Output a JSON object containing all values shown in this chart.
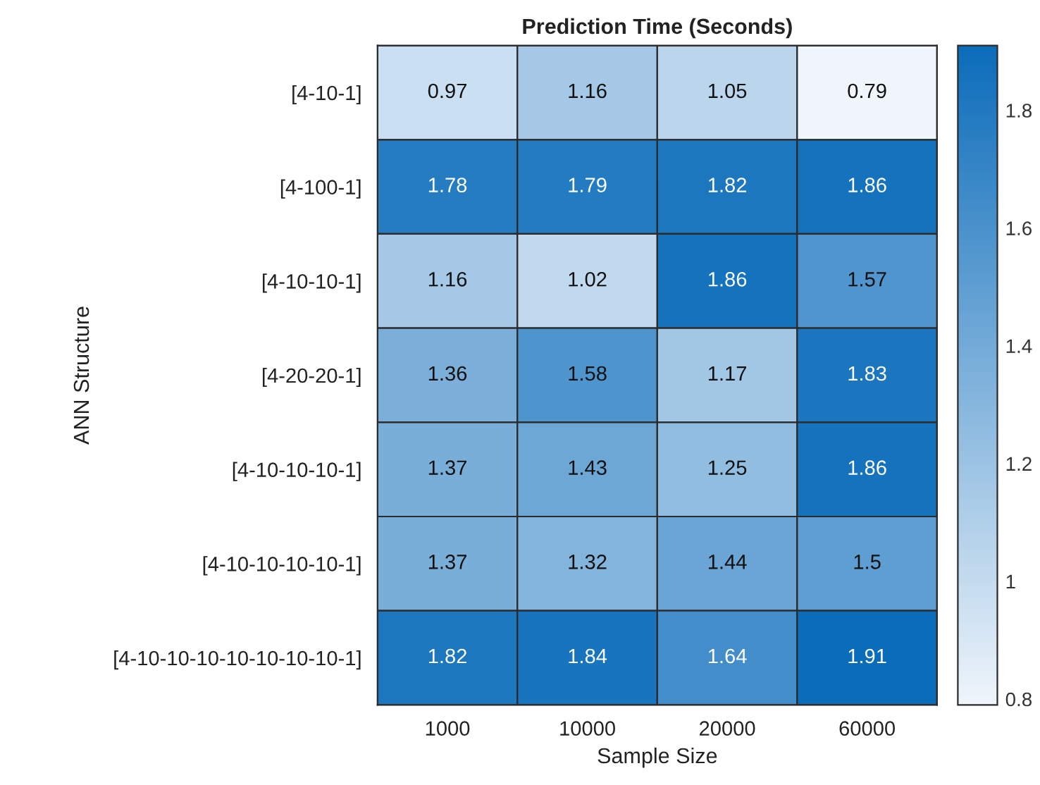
{
  "chart_data": {
    "type": "heatmap",
    "title": "Prediction Time (Seconds)",
    "xlabel": "Sample Size",
    "ylabel": "ANN Structure",
    "categories": [
      "1000",
      "10000",
      "20000",
      "60000"
    ],
    "y_categories": [
      "[4-10-1]",
      "[4-100-1]",
      "[4-10-10-1]",
      "[4-20-20-1]",
      "[4-10-10-10-1]",
      "[4-10-10-10-10-1]",
      "[4-10-10-10-10-10-10-10-1]"
    ],
    "cells": [
      [
        0.97,
        1.16,
        1.05,
        0.79
      ],
      [
        1.78,
        1.79,
        1.82,
        1.86
      ],
      [
        1.16,
        1.02,
        1.86,
        1.57
      ],
      [
        1.36,
        1.58,
        1.17,
        1.83
      ],
      [
        1.37,
        1.43,
        1.25,
        1.86
      ],
      [
        1.37,
        1.32,
        1.44,
        1.5
      ],
      [
        1.82,
        1.84,
        1.64,
        1.91
      ]
    ],
    "colors": [
      "#eff5fb",
      "#0b6cba"
    ],
    "clim": [
      0.79,
      1.91
    ],
    "cticks": [
      0.8,
      1,
      1.2,
      1.4,
      1.6,
      1.8
    ],
    "data_labels": true
  }
}
